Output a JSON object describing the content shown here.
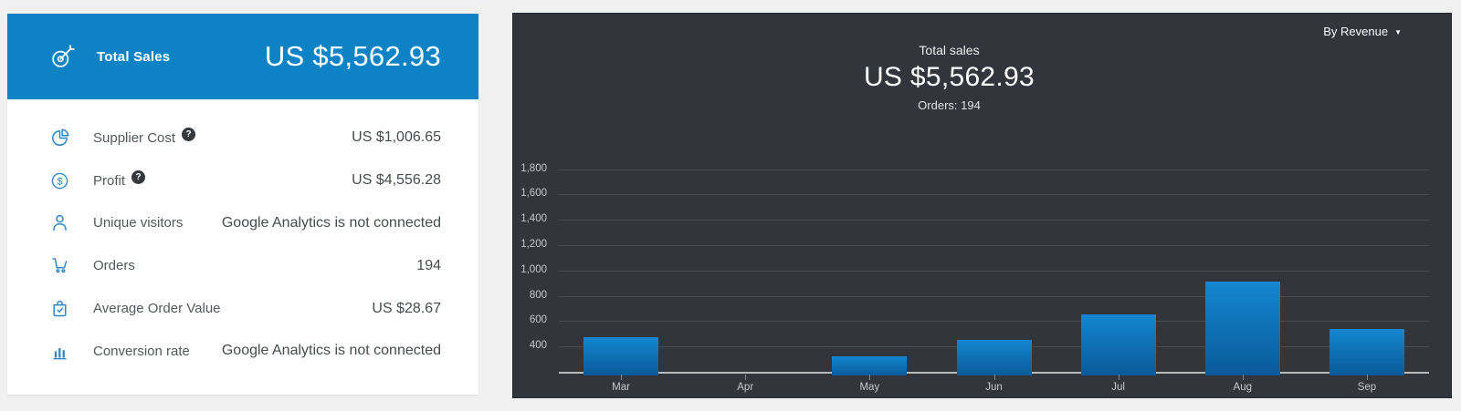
{
  "summary_card": {
    "header": {
      "icon": "target-icon",
      "label": "Total Sales",
      "value": "US $5,562.93",
      "bg_color": "#0d83c6"
    },
    "rows": [
      {
        "icon": "pie-chart-icon",
        "label": "Supplier Cost",
        "help": true,
        "value": "US $1,006.65"
      },
      {
        "icon": "dollar-circle-icon",
        "label": "Profit",
        "help": true,
        "value": "US $4,556.28"
      },
      {
        "icon": "person-icon",
        "label": "Unique visitors",
        "help": false,
        "value": "Google Analytics is not connected"
      },
      {
        "icon": "cart-icon",
        "label": "Orders",
        "help": false,
        "value": "194"
      },
      {
        "icon": "bag-check-icon",
        "label": "Average Order Value",
        "help": false,
        "value": "US $28.67"
      },
      {
        "icon": "bar-chart-icon",
        "label": "Conversion rate",
        "help": false,
        "value": "Google Analytics is not connected"
      }
    ],
    "icon_color": "#2e86c4"
  },
  "chart_panel": {
    "dropdown_label": "By Revenue",
    "title": "Total sales",
    "value": "US $5,562.93",
    "subtitle": "Orders: 194",
    "bg_color": "#32363c"
  },
  "chart_data": {
    "type": "bar",
    "title": "Total sales",
    "series_name": "Revenue",
    "categories": [
      "Mar",
      "Apr",
      "May",
      "Jun",
      "Jul",
      "Aug",
      "Sep"
    ],
    "values": [
      475,
      0,
      325,
      450,
      655,
      910,
      540
    ],
    "ylim": [
      200,
      1900
    ],
    "yticks": [
      400,
      600,
      800,
      1000,
      1200,
      1400,
      1600,
      1800
    ],
    "ytick_labels": [
      "400",
      "600",
      "800",
      "1,000",
      "1,200",
      "1,400",
      "1,600",
      "1,800"
    ],
    "grid": "horizontal",
    "legend": "none",
    "bar_color_top": "#1487d0",
    "bar_color_bottom": "#0a5a98"
  }
}
